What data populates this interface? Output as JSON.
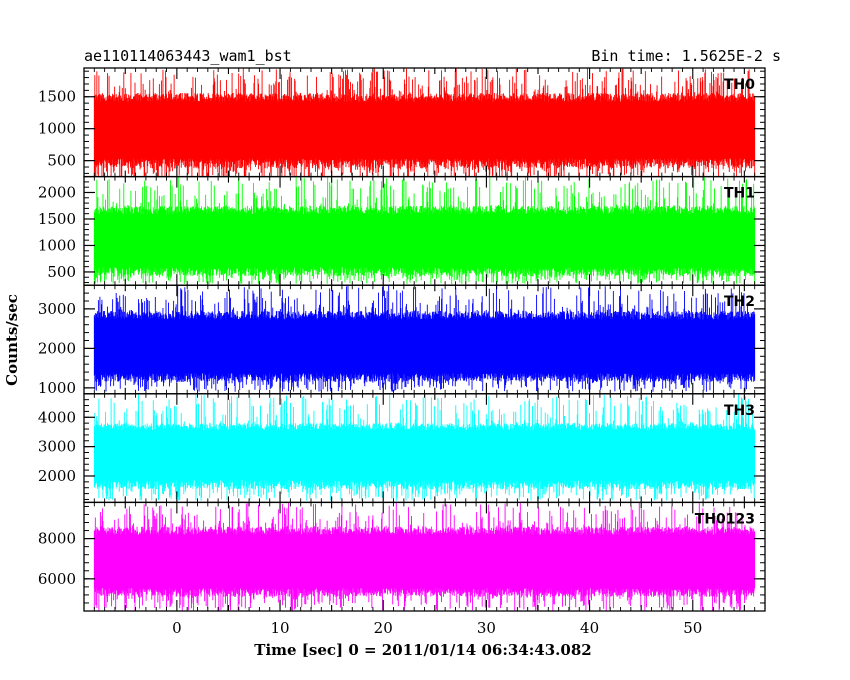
{
  "header": {
    "title_left": "ae110114063443_wam1_bst",
    "title_right": "Bin time: 1.5625E-2 s"
  },
  "chart_data": {
    "type": "line",
    "title": "ae110114063443_wam1_bst",
    "subtitle": "Bin time: 1.5625E-2 s",
    "xlabel": "Time [sec] 0 = 2011/01/14 06:34:43.082",
    "ylabel": "Counts/sec",
    "xlim": [
      -9,
      57
    ],
    "x_data_range": [
      -8,
      56
    ],
    "x_ticks": [
      0,
      10,
      20,
      30,
      40,
      50
    ],
    "grid": false,
    "legend": "none",
    "panels": [
      {
        "name": "TH0",
        "color": "#ff0000",
        "ylim": [
          250,
          1950
        ],
        "yticks": [
          500,
          1000,
          1500
        ],
        "band_bottom": 380,
        "band_top": 1560,
        "spike_min": 170,
        "spike_max": 1950,
        "mean": 1000
      },
      {
        "name": "TH1",
        "color": "#00ff00",
        "ylim": [
          250,
          2300
        ],
        "yticks": [
          500,
          1000,
          1500,
          2000
        ],
        "band_bottom": 420,
        "band_top": 1750,
        "spike_min": 270,
        "spike_max": 2300,
        "mean": 1100
      },
      {
        "name": "TH2",
        "color": "#0000ff",
        "ylim": [
          850,
          3600
        ],
        "yticks": [
          1000,
          2000,
          3000
        ],
        "band_bottom": 1150,
        "band_top": 2950,
        "spike_min": 900,
        "spike_max": 3600,
        "mean": 2050
      },
      {
        "name": "TH3",
        "color": "#00ffff",
        "ylim": [
          1100,
          4800
        ],
        "yticks": [
          2000,
          3000,
          4000
        ],
        "band_bottom": 1550,
        "band_top": 3800,
        "spike_min": 1150,
        "spike_max": 4800,
        "mean": 2800
      },
      {
        "name": "TH0123",
        "color": "#ff00ff",
        "ylim": [
          4400,
          9800
        ],
        "yticks": [
          6000,
          8000
        ],
        "band_bottom": 5100,
        "band_top": 8600,
        "spike_min": 4400,
        "spike_max": 9800,
        "mean": 6900
      }
    ]
  }
}
